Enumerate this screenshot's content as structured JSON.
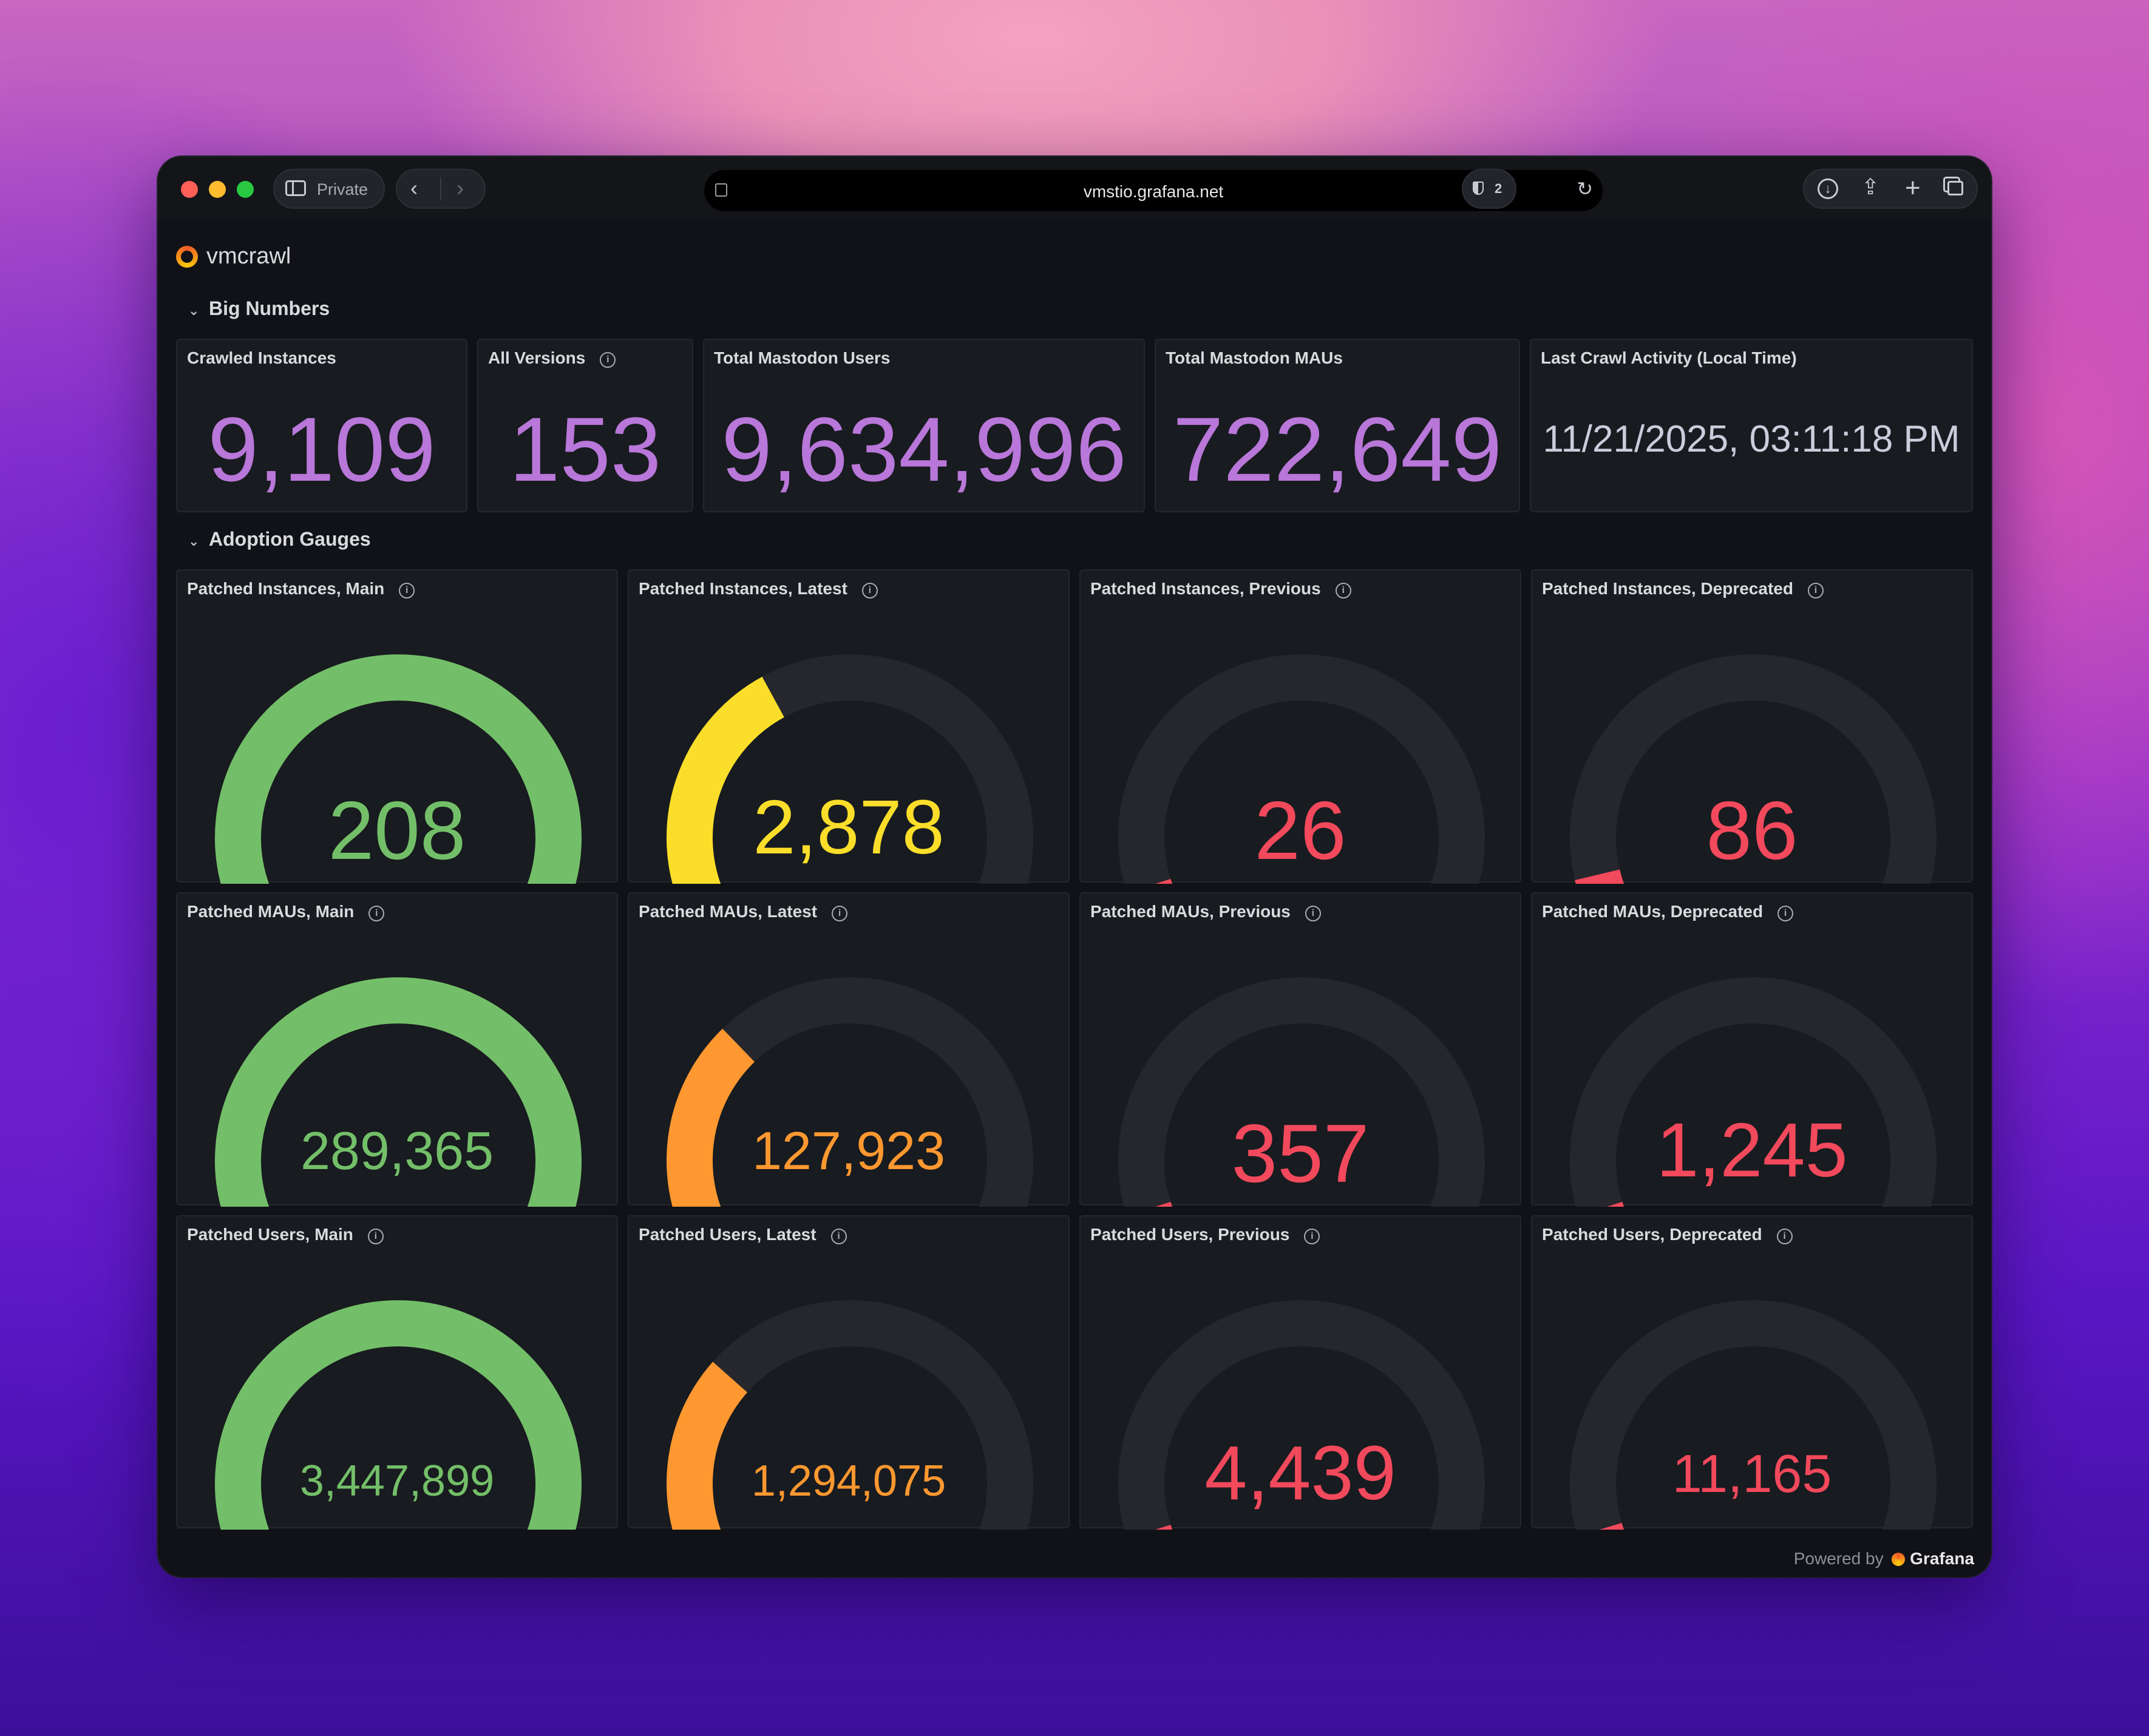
{
  "browser": {
    "private_label": "Private",
    "url": "vmstio.grafana.net",
    "shield_count": "2"
  },
  "dashboard": {
    "title": "vmcrawl",
    "sections": [
      "Big Numbers",
      "Adoption Gauges"
    ],
    "footer_prefix": "Powered by",
    "footer_brand": "Grafana"
  },
  "colors": {
    "stat_purple": "#b877d9",
    "green": "#73bf69",
    "yellow": "#fade2a",
    "orange": "#ff9830",
    "red": "#f2495c",
    "track": "#25272c"
  },
  "stats": [
    {
      "title": "Crawled Instances",
      "value": "9,109",
      "info": false
    },
    {
      "title": "All Versions",
      "value": "153",
      "info": true
    },
    {
      "title": "Total Mastodon Users",
      "value": "9,634,996",
      "info": false
    },
    {
      "title": "Total Mastodon MAUs",
      "value": "722,649",
      "info": false
    },
    {
      "title": "Last Crawl Activity (Local Time)",
      "value": "11/21/2025, 03:11:18 PM",
      "info": false
    }
  ],
  "gauges": [
    {
      "title": "Patched Instances, Main",
      "value": "208",
      "fraction": 1.0,
      "color": "green"
    },
    {
      "title": "Patched Instances, Latest",
      "value": "2,878",
      "fraction": 0.37,
      "color": "yellow"
    },
    {
      "title": "Patched Instances, Previous",
      "value": "26",
      "fraction": 0.01,
      "color": "red"
    },
    {
      "title": "Patched Instances, Deprecated",
      "value": "86",
      "fraction": 0.03,
      "color": "red"
    },
    {
      "title": "Patched MAUs, Main",
      "value": "289,365",
      "fraction": 1.0,
      "color": "green"
    },
    {
      "title": "Patched MAUs, Latest",
      "value": "127,923",
      "fraction": 0.3,
      "color": "orange"
    },
    {
      "title": "Patched MAUs, Previous",
      "value": "357",
      "fraction": 0.005,
      "color": "red"
    },
    {
      "title": "Patched MAUs, Deprecated",
      "value": "1,245",
      "fraction": 0.01,
      "color": "red"
    },
    {
      "title": "Patched Users, Main",
      "value": "3,447,899",
      "fraction": 1.0,
      "color": "green"
    },
    {
      "title": "Patched Users, Latest",
      "value": "1,294,075",
      "fraction": 0.28,
      "color": "orange"
    },
    {
      "title": "Patched Users, Previous",
      "value": "4,439",
      "fraction": 0.005,
      "color": "red"
    },
    {
      "title": "Patched Users, Deprecated",
      "value": "11,165",
      "fraction": 0.015,
      "color": "red"
    }
  ]
}
